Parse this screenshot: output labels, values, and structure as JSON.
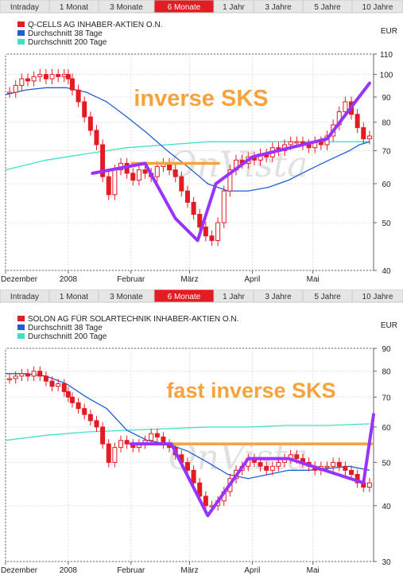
{
  "tabs": [
    "Intraday",
    "1 Monat",
    "3 Monate",
    "6 Monate",
    "1 Jahr",
    "3 Jahre",
    "5 Jahre",
    "10 Jahre"
  ],
  "active_tab": "6 Monate",
  "colors": {
    "accent": "#e31b23",
    "candles": "#e31b23",
    "ma38": "#1f5fd6",
    "ma200": "#3fe0c8",
    "annotation_line": "#9933ff",
    "annotation_text": "#f7a23b",
    "resistance": "#f7a23b"
  },
  "chart_data": [
    {
      "type": "line",
      "currency": "EUR",
      "legend": [
        "Q-CELLS AG INHABER-AKTIEN O.N.",
        "Durchschnitt 38 Tage",
        "Durchschnitt 200 Tage"
      ],
      "watermark": "OnVista",
      "annotation": "inverse SKS",
      "yticks": [
        40,
        50,
        60,
        70,
        80,
        90,
        100,
        110
      ],
      "ylim": [
        40,
        110
      ],
      "xticks": [
        "Dezember",
        "2008",
        "Februar",
        "März",
        "April",
        "Mai"
      ],
      "xtick_days": [
        0,
        31,
        62,
        91,
        122,
        152
      ],
      "xlim_days": [
        0,
        182
      ],
      "series": [
        {
          "name": "Q-CELLS AG INHABER-AKTIEN O.N.",
          "x": [
            2,
            5,
            8,
            11,
            14,
            17,
            20,
            23,
            26,
            29,
            31,
            33,
            36,
            39,
            42,
            45,
            48,
            51,
            54,
            57,
            60,
            63,
            66,
            69,
            72,
            75,
            78,
            81,
            84,
            87,
            90,
            93,
            96,
            99,
            102,
            105,
            108,
            111,
            114,
            117,
            120,
            123,
            126,
            129,
            132,
            135,
            138,
            141,
            144,
            147,
            150,
            153,
            156,
            159,
            162,
            165,
            168,
            171,
            174,
            177,
            180
          ],
          "values": [
            92,
            95,
            98,
            97,
            99,
            100,
            98,
            100,
            99,
            100,
            98,
            93,
            88,
            82,
            77,
            72,
            62,
            57,
            64,
            66,
            63,
            61,
            64,
            63,
            62,
            65,
            66,
            64,
            62,
            58,
            55,
            52,
            49,
            47,
            46,
            50,
            58,
            64,
            67,
            66,
            68,
            67,
            69,
            68,
            71,
            70,
            72,
            73,
            73,
            72,
            71,
            73,
            72,
            75,
            79,
            84,
            88,
            83,
            78,
            74,
            75
          ]
        },
        {
          "name": "Durchschnitt 38 Tage",
          "x": [
            0,
            10,
            20,
            30,
            40,
            50,
            60,
            70,
            80,
            90,
            100,
            110,
            120,
            130,
            140,
            150,
            160,
            170,
            175,
            180
          ],
          "values": [
            91,
            93,
            94,
            94,
            92,
            88,
            82,
            76,
            70,
            65,
            60,
            58,
            58,
            59,
            61,
            64,
            67,
            70,
            72,
            73
          ]
        },
        {
          "name": "Durchschnitt 200 Tage",
          "x": [
            0,
            20,
            40,
            60,
            80,
            100,
            120,
            140,
            160,
            180
          ],
          "values": [
            64,
            67,
            69,
            71,
            72,
            73,
            73,
            73,
            73,
            73
          ]
        }
      ],
      "pattern_line": {
        "x": [
          43,
          69,
          84,
          95,
          104,
          122,
          159,
          180
        ],
        "values": [
          63,
          66,
          51,
          46,
          60,
          68,
          74,
          96
        ]
      },
      "neckline": {
        "x": [
          62,
          106
        ],
        "values": [
          66,
          66
        ]
      }
    },
    {
      "type": "line",
      "currency": "EUR",
      "legend": [
        "SOLON AG FÜR SOLARTECHNIK INHABER-AKTIEN O.N.",
        "Durchschnitt 38 Tage",
        "Durchschnitt 200 Tage"
      ],
      "watermark": "OnVista",
      "annotation": "fast inverse SKS",
      "yticks": [
        30,
        40,
        50,
        60,
        70,
        80,
        90
      ],
      "ylim": [
        30,
        90
      ],
      "xticks": [
        "Dezember",
        "2008",
        "Februar",
        "März",
        "April",
        "Mai"
      ],
      "xtick_days": [
        0,
        31,
        62,
        91,
        122,
        152
      ],
      "xlim_days": [
        0,
        182
      ],
      "series": [
        {
          "name": "SOLON AG FÜR SOLARTECHNIK INHABER-AKTIEN O.N.",
          "x": [
            2,
            5,
            8,
            11,
            14,
            17,
            20,
            23,
            26,
            29,
            31,
            33,
            36,
            39,
            42,
            45,
            48,
            51,
            54,
            57,
            60,
            63,
            66,
            69,
            72,
            75,
            78,
            81,
            84,
            87,
            90,
            93,
            96,
            99,
            102,
            105,
            108,
            111,
            114,
            117,
            120,
            123,
            126,
            129,
            132,
            135,
            138,
            141,
            144,
            147,
            150,
            153,
            156,
            159,
            162,
            165,
            168,
            171,
            174,
            177,
            180
          ],
          "values": [
            77,
            78,
            79,
            78,
            80,
            78,
            76,
            74,
            75,
            72,
            70,
            68,
            66,
            64,
            62,
            60,
            55,
            50,
            54,
            56,
            55,
            54,
            55,
            56,
            58,
            57,
            55,
            54,
            52,
            50,
            48,
            45,
            42,
            40,
            40,
            41,
            43,
            46,
            48,
            49,
            51,
            50,
            49,
            48,
            49,
            50,
            51,
            52,
            51,
            50,
            49,
            48,
            49,
            49,
            50,
            49,
            48,
            47,
            45,
            44,
            45
          ]
        },
        {
          "name": "Durchschnitt 38 Tage",
          "x": [
            0,
            10,
            20,
            30,
            40,
            50,
            60,
            70,
            80,
            90,
            100,
            110,
            120,
            130,
            140,
            150,
            160,
            170,
            180
          ],
          "values": [
            79,
            79,
            78,
            75,
            70,
            66,
            59,
            56,
            55,
            53,
            50,
            47,
            46,
            47,
            48,
            48,
            48.5,
            49,
            48
          ]
        },
        {
          "name": "Durchschnitt 200 Tage",
          "x": [
            0,
            20,
            40,
            60,
            80,
            100,
            120,
            140,
            160,
            180
          ],
          "values": [
            56,
            57.5,
            58.5,
            59,
            59.5,
            60,
            60,
            60.5,
            60.5,
            61
          ]
        }
      ],
      "pattern_line": {
        "x": [
          62,
          82,
          100,
          120,
          140,
          177,
          182
        ],
        "values": [
          55,
          55,
          38,
          51,
          51,
          45,
          64
        ]
      },
      "neckline": {
        "x": [
          62,
          182
        ],
        "values": [
          55,
          55
        ]
      }
    }
  ]
}
